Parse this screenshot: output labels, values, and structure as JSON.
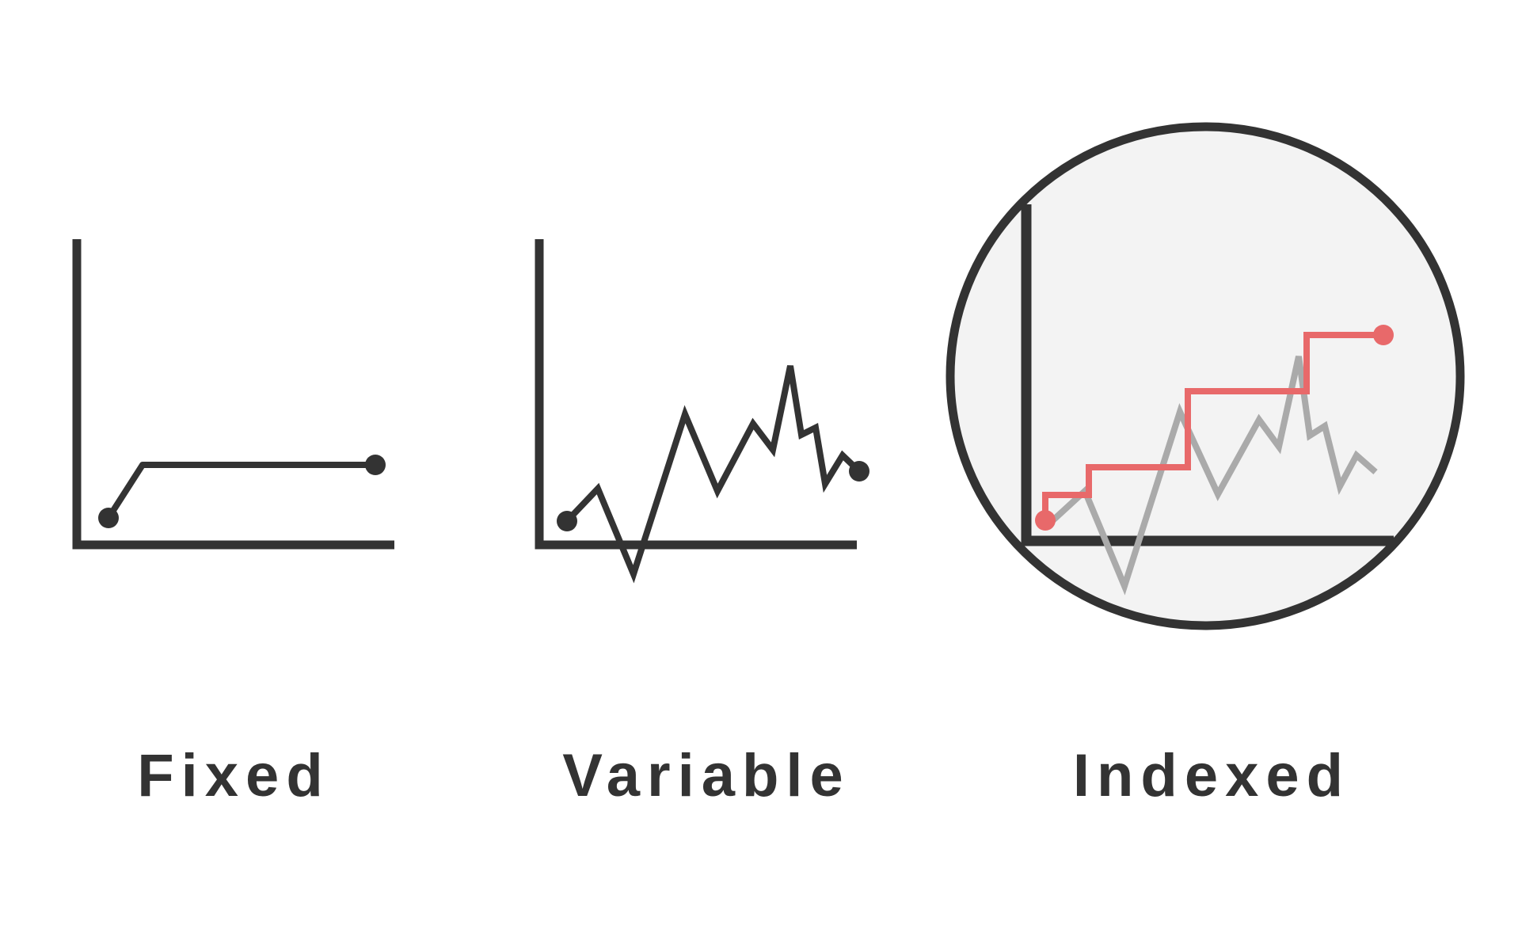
{
  "colors": {
    "ink": "#333333",
    "accent": "#E8696A",
    "muted": "#AAAAAA",
    "circle_fill": "#F3F3F3"
  },
  "panels": [
    {
      "id": "fixed",
      "label": "Fixed",
      "icon": "fixed-rate-chart-icon"
    },
    {
      "id": "variable",
      "label": "Variable",
      "icon": "variable-rate-chart-icon"
    },
    {
      "id": "indexed",
      "label": "Indexed",
      "icon": "indexed-rate-chart-icon"
    }
  ]
}
